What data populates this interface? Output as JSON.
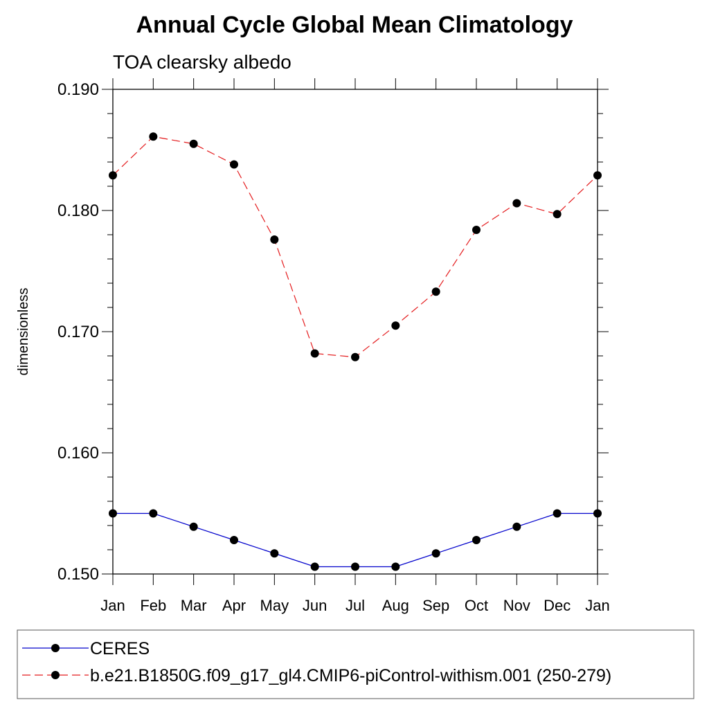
{
  "chart_data": {
    "type": "line",
    "title": "Annual Cycle Global Mean Climatology",
    "subtitle": "TOA clearsky albedo",
    "ylabel": "dimensionless",
    "xlabel": "",
    "categories": [
      "Jan",
      "Feb",
      "Mar",
      "Apr",
      "May",
      "Jun",
      "Jul",
      "Aug",
      "Sep",
      "Oct",
      "Nov",
      "Dec",
      "Jan"
    ],
    "ylim": [
      0.15,
      0.19
    ],
    "yticks": [
      "0.150",
      "0.160",
      "0.170",
      "0.180",
      "0.190"
    ],
    "grid": false,
    "legend": "bottom",
    "series": [
      {
        "name": "CERES",
        "color": "#0000cc",
        "style": "solid",
        "marker": "circle",
        "values": [
          0.155,
          0.155,
          0.1539,
          0.1528,
          0.1517,
          0.1506,
          0.1506,
          0.1506,
          0.1517,
          0.1528,
          0.1539,
          0.155,
          0.155
        ]
      },
      {
        "name": "b.e21.B1850G.f09_g17_gl4.CMIP6-piControl-withism.001 (250-279)",
        "color": "#e41a1c",
        "style": "dashed",
        "marker": "circle",
        "values": [
          0.1829,
          0.1861,
          0.1855,
          0.1838,
          0.1776,
          0.1682,
          0.1679,
          0.1705,
          0.1733,
          0.1784,
          0.1806,
          0.1797,
          0.1829
        ]
      }
    ]
  }
}
